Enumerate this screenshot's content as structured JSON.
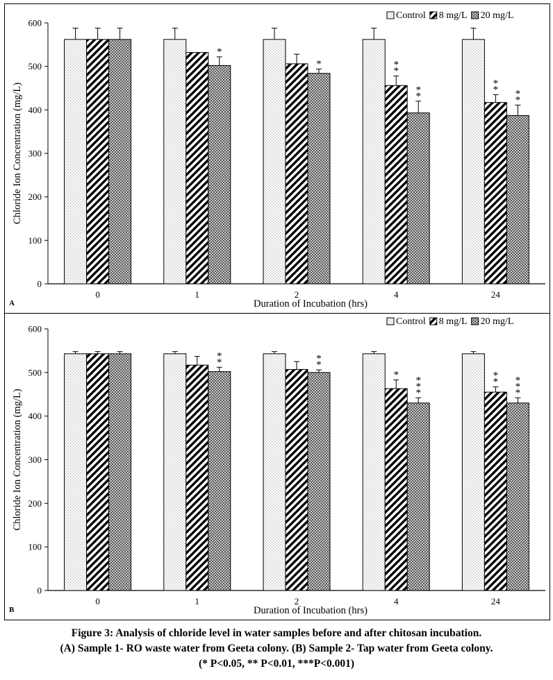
{
  "chart_data": [
    {
      "type": "bar",
      "panel_label": "A",
      "xlabel": "Duration of Incubation (hrs)",
      "ylabel": "Chloride Ion Concentration (mg/L)",
      "ylim": [
        0,
        600
      ],
      "yticks": [
        0,
        100,
        200,
        300,
        400,
        500,
        600
      ],
      "grid": false,
      "legend_position": "top-right",
      "categories": [
        "0",
        "1",
        "2",
        "4",
        "24"
      ],
      "series": [
        {
          "name": "Control",
          "pattern": "dots",
          "values": [
            562,
            562,
            562,
            562,
            562
          ],
          "errors": [
            26,
            26,
            26,
            26,
            26
          ],
          "sig": [
            "",
            "",
            "",
            "",
            ""
          ]
        },
        {
          "name": "8 mg/L",
          "pattern": "hatch",
          "values": [
            562,
            532,
            506,
            456,
            417
          ],
          "errors": [
            26,
            0,
            22,
            22,
            18
          ],
          "sig": [
            "",
            "",
            "",
            "**",
            "**"
          ]
        },
        {
          "name": "20 mg/L",
          "pattern": "grid",
          "values": [
            562,
            502,
            484,
            393,
            387
          ],
          "errors": [
            26,
            20,
            10,
            27,
            24
          ],
          "sig": [
            "",
            "*",
            "*",
            "**",
            "**"
          ]
        }
      ]
    },
    {
      "type": "bar",
      "panel_label": "B",
      "xlabel": "Duration of Incubation (hrs)",
      "ylabel": "Chloride Ion Concentration (mg/L)",
      "ylim": [
        0,
        600
      ],
      "yticks": [
        0,
        100,
        200,
        300,
        400,
        500,
        600
      ],
      "grid": false,
      "legend_position": "top-right",
      "categories": [
        "0",
        "1",
        "2",
        "4",
        "24"
      ],
      "series": [
        {
          "name": "Control",
          "pattern": "dots",
          "values": [
            543,
            543,
            543,
            543,
            543
          ],
          "errors": [
            5,
            5,
            5,
            5,
            5
          ],
          "sig": [
            "",
            "",
            "",
            "",
            ""
          ]
        },
        {
          "name": "8 mg/L",
          "pattern": "hatch",
          "values": [
            543,
            517,
            507,
            463,
            455
          ],
          "errors": [
            5,
            20,
            18,
            20,
            12
          ],
          "sig": [
            "",
            "",
            "",
            "*",
            "**"
          ]
        },
        {
          "name": "20 mg/L",
          "pattern": "grid",
          "values": [
            543,
            502,
            500,
            430,
            430
          ],
          "errors": [
            5,
            10,
            6,
            12,
            12
          ],
          "sig": [
            "",
            "**",
            "**",
            "***",
            "***"
          ]
        }
      ]
    }
  ],
  "caption": {
    "line1": "Figure 3: Analysis of chloride level in water samples before and after chitosan incubation.",
    "line2": "(A) Sample 1- RO waste water from Geeta colony. (B) Sample 2- Tap water from Geeta colony.",
    "line3": "(* P<0.05, ** P<0.01, ***P<0.001)"
  }
}
